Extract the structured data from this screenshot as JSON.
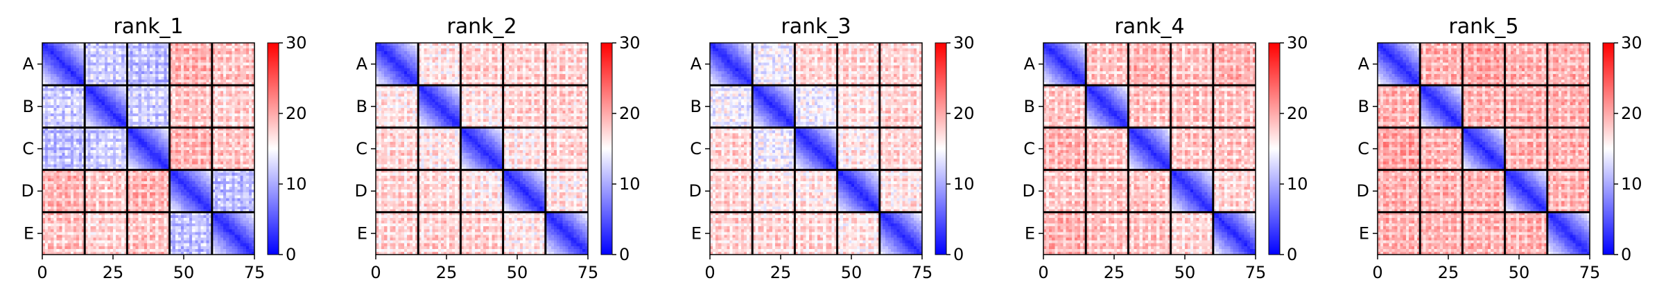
{
  "chart_data": {
    "type": "heatmap",
    "colormap": "bwr",
    "colorbar": {
      "min": 0,
      "max": 30,
      "ticks": [
        "0",
        "10",
        "20",
        "30"
      ]
    },
    "x_ticks": [
      "0",
      "25",
      "50",
      "75"
    ],
    "x_tick_values": [
      0,
      25,
      50,
      75
    ],
    "xlim": [
      0,
      75
    ],
    "groups": [
      "A",
      "B",
      "C",
      "D",
      "E"
    ],
    "group_size": 15,
    "grid_size": 75,
    "panels": [
      {
        "title": "rank_1",
        "block_means": [
          [
            8,
            14,
            13,
            21,
            20
          ],
          [
            14,
            7,
            14,
            20,
            19
          ],
          [
            13,
            14,
            7,
            21,
            20
          ],
          [
            21,
            20,
            21,
            7,
            13
          ],
          [
            20,
            19,
            20,
            13,
            7
          ]
        ]
      },
      {
        "title": "rank_2",
        "block_means": [
          [
            7,
            18,
            19,
            19,
            19
          ],
          [
            18,
            7,
            18,
            19,
            19
          ],
          [
            19,
            18,
            7,
            18,
            19
          ],
          [
            19,
            19,
            18,
            7,
            18
          ],
          [
            19,
            19,
            19,
            18,
            7
          ]
        ]
      },
      {
        "title": "rank_3",
        "block_means": [
          [
            7,
            16,
            19,
            19,
            19
          ],
          [
            16,
            7,
            16,
            18,
            19
          ],
          [
            19,
            16,
            7,
            18,
            19
          ],
          [
            19,
            18,
            18,
            7,
            18
          ],
          [
            19,
            19,
            19,
            18,
            7
          ]
        ]
      },
      {
        "title": "rank_4",
        "block_means": [
          [
            7,
            20,
            21,
            20,
            21
          ],
          [
            20,
            7,
            20,
            20,
            20
          ],
          [
            21,
            20,
            7,
            20,
            20
          ],
          [
            20,
            20,
            20,
            7,
            19
          ],
          [
            21,
            20,
            20,
            19,
            7
          ]
        ]
      },
      {
        "title": "rank_5",
        "block_means": [
          [
            7,
            21,
            22,
            21,
            21
          ],
          [
            21,
            7,
            21,
            21,
            21
          ],
          [
            22,
            21,
            7,
            21,
            21
          ],
          [
            21,
            21,
            21,
            7,
            21
          ],
          [
            21,
            21,
            21,
            21,
            7
          ]
        ]
      }
    ]
  }
}
